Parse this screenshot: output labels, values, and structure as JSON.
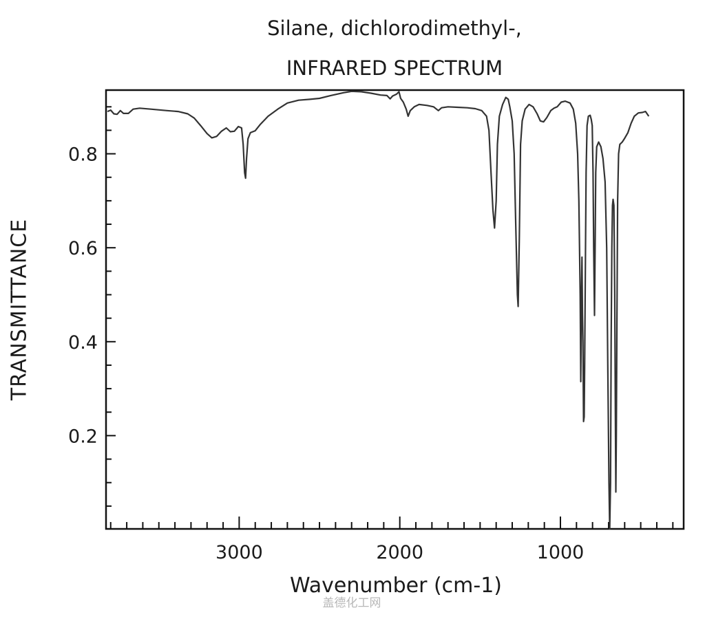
{
  "chart_data": {
    "type": "line",
    "title": "Silane, dichlorodimethyl-,",
    "subtitle": "INFRARED SPECTRUM",
    "xlabel": "Wavenumber (cm-1)",
    "ylabel": "TRANSMITTANCE",
    "xlim": [
      3820,
      220
    ],
    "x_reversed": true,
    "ylim": [
      0.0,
      0.93
    ],
    "grid": false,
    "legend": null,
    "x_ticks": [
      3000,
      2000,
      1000
    ],
    "x_minor_step": 100,
    "y_ticks": [
      0.2,
      0.4,
      0.6,
      0.8
    ],
    "y_minor_step": 0.05,
    "series": [
      {
        "name": "Silane, dichlorodimethyl- IR spectrum",
        "color": "#333333",
        "points": [
          [
            3820,
            0.89
          ],
          [
            3800,
            0.893
          ],
          [
            3780,
            0.885
          ],
          [
            3760,
            0.884
          ],
          [
            3740,
            0.892
          ],
          [
            3720,
            0.886
          ],
          [
            3690,
            0.886
          ],
          [
            3660,
            0.895
          ],
          [
            3620,
            0.897
          ],
          [
            3550,
            0.895
          ],
          [
            3450,
            0.892
          ],
          [
            3380,
            0.89
          ],
          [
            3320,
            0.885
          ],
          [
            3280,
            0.876
          ],
          [
            3240,
            0.86
          ],
          [
            3200,
            0.843
          ],
          [
            3170,
            0.834
          ],
          [
            3140,
            0.837
          ],
          [
            3110,
            0.848
          ],
          [
            3080,
            0.855
          ],
          [
            3055,
            0.847
          ],
          [
            3030,
            0.848
          ],
          [
            3005,
            0.858
          ],
          [
            2985,
            0.855
          ],
          [
            2975,
            0.82
          ],
          [
            2966,
            0.76
          ],
          [
            2960,
            0.748
          ],
          [
            2954,
            0.79
          ],
          [
            2945,
            0.832
          ],
          [
            2930,
            0.845
          ],
          [
            2900,
            0.849
          ],
          [
            2870,
            0.862
          ],
          [
            2820,
            0.88
          ],
          [
            2760,
            0.895
          ],
          [
            2700,
            0.908
          ],
          [
            2630,
            0.914
          ],
          [
            2560,
            0.916
          ],
          [
            2500,
            0.918
          ],
          [
            2430,
            0.924
          ],
          [
            2350,
            0.93
          ],
          [
            2300,
            0.933
          ],
          [
            2240,
            0.932
          ],
          [
            2180,
            0.929
          ],
          [
            2120,
            0.925
          ],
          [
            2080,
            0.924
          ],
          [
            2060,
            0.917
          ],
          [
            2045,
            0.923
          ],
          [
            2020,
            0.927
          ],
          [
            2005,
            0.932
          ],
          [
            1995,
            0.918
          ],
          [
            1978,
            0.91
          ],
          [
            1960,
            0.895
          ],
          [
            1948,
            0.88
          ],
          [
            1935,
            0.892
          ],
          [
            1910,
            0.9
          ],
          [
            1880,
            0.905
          ],
          [
            1830,
            0.903
          ],
          [
            1790,
            0.9
          ],
          [
            1760,
            0.892
          ],
          [
            1740,
            0.898
          ],
          [
            1700,
            0.9
          ],
          [
            1640,
            0.899
          ],
          [
            1580,
            0.898
          ],
          [
            1530,
            0.896
          ],
          [
            1490,
            0.892
          ],
          [
            1460,
            0.88
          ],
          [
            1445,
            0.85
          ],
          [
            1432,
            0.76
          ],
          [
            1420,
            0.68
          ],
          [
            1410,
            0.642
          ],
          [
            1400,
            0.7
          ],
          [
            1392,
            0.82
          ],
          [
            1380,
            0.88
          ],
          [
            1360,
            0.905
          ],
          [
            1340,
            0.92
          ],
          [
            1325,
            0.916
          ],
          [
            1315,
            0.9
          ],
          [
            1300,
            0.87
          ],
          [
            1288,
            0.8
          ],
          [
            1278,
            0.65
          ],
          [
            1268,
            0.5
          ],
          [
            1263,
            0.475
          ],
          [
            1256,
            0.62
          ],
          [
            1248,
            0.82
          ],
          [
            1238,
            0.87
          ],
          [
            1220,
            0.895
          ],
          [
            1195,
            0.905
          ],
          [
            1170,
            0.9
          ],
          [
            1145,
            0.885
          ],
          [
            1125,
            0.87
          ],
          [
            1105,
            0.868
          ],
          [
            1085,
            0.877
          ],
          [
            1060,
            0.892
          ],
          [
            1040,
            0.897
          ],
          [
            1020,
            0.9
          ],
          [
            995,
            0.91
          ],
          [
            970,
            0.912
          ],
          [
            940,
            0.908
          ],
          [
            920,
            0.895
          ],
          [
            905,
            0.865
          ],
          [
            893,
            0.8
          ],
          [
            885,
            0.7
          ],
          [
            877,
            0.5
          ],
          [
            873,
            0.315
          ],
          [
            869,
            0.5
          ],
          [
            866,
            0.58
          ],
          [
            863,
            0.46
          ],
          [
            860,
            0.4
          ],
          [
            856,
            0.23
          ],
          [
            852,
            0.24
          ],
          [
            849,
            0.35
          ],
          [
            845,
            0.55
          ],
          [
            840,
            0.76
          ],
          [
            834,
            0.86
          ],
          [
            826,
            0.88
          ],
          [
            815,
            0.882
          ],
          [
            808,
            0.873
          ],
          [
            802,
            0.86
          ],
          [
            797,
            0.76
          ],
          [
            793,
            0.6
          ],
          [
            788,
            0.456
          ],
          [
            784,
            0.6
          ],
          [
            780,
            0.76
          ],
          [
            774,
            0.815
          ],
          [
            762,
            0.825
          ],
          [
            748,
            0.815
          ],
          [
            735,
            0.79
          ],
          [
            722,
            0.74
          ],
          [
            712,
            0.6
          ],
          [
            705,
            0.35
          ],
          [
            698,
            0.1
          ],
          [
            693,
            0.0
          ],
          [
            688,
            0.1
          ],
          [
            684,
            0.4
          ],
          [
            680,
            0.6
          ],
          [
            676,
            0.69
          ],
          [
            672,
            0.703
          ],
          [
            667,
            0.69
          ],
          [
            662,
            0.5
          ],
          [
            658,
            0.25
          ],
          [
            655,
            0.08
          ],
          [
            652,
            0.2
          ],
          [
            648,
            0.45
          ],
          [
            644,
            0.7
          ],
          [
            638,
            0.8
          ],
          [
            630,
            0.82
          ],
          [
            615,
            0.825
          ],
          [
            600,
            0.833
          ],
          [
            580,
            0.845
          ],
          [
            560,
            0.865
          ],
          [
            540,
            0.88
          ],
          [
            515,
            0.887
          ],
          [
            490,
            0.888
          ],
          [
            470,
            0.89
          ],
          [
            450,
            0.88
          ]
        ]
      }
    ],
    "key_bands": [
      {
        "wavenumber": 2960,
        "transmittance": 0.748
      },
      {
        "wavenumber": 1410,
        "transmittance": 0.642
      },
      {
        "wavenumber": 1263,
        "transmittance": 0.475
      },
      {
        "wavenumber": 873,
        "transmittance": 0.315
      },
      {
        "wavenumber": 856,
        "transmittance": 0.23
      },
      {
        "wavenumber": 788,
        "transmittance": 0.456
      },
      {
        "wavenumber": 693,
        "transmittance": 0.0
      },
      {
        "wavenumber": 655,
        "transmittance": 0.08
      }
    ]
  },
  "labels": {
    "title_line1": "Silane, dichlorodimethyl-,",
    "title_line2": "INFRARED SPECTRUM",
    "ylabel": "TRANSMITTANCE",
    "xlabel": "Wavenumber (cm-1)",
    "watermark": "盖德化工网",
    "x_tick_labels": [
      "3000",
      "2000",
      "1000"
    ],
    "y_tick_labels": [
      "0.8",
      "0.6",
      "0.4",
      "0.2"
    ]
  }
}
